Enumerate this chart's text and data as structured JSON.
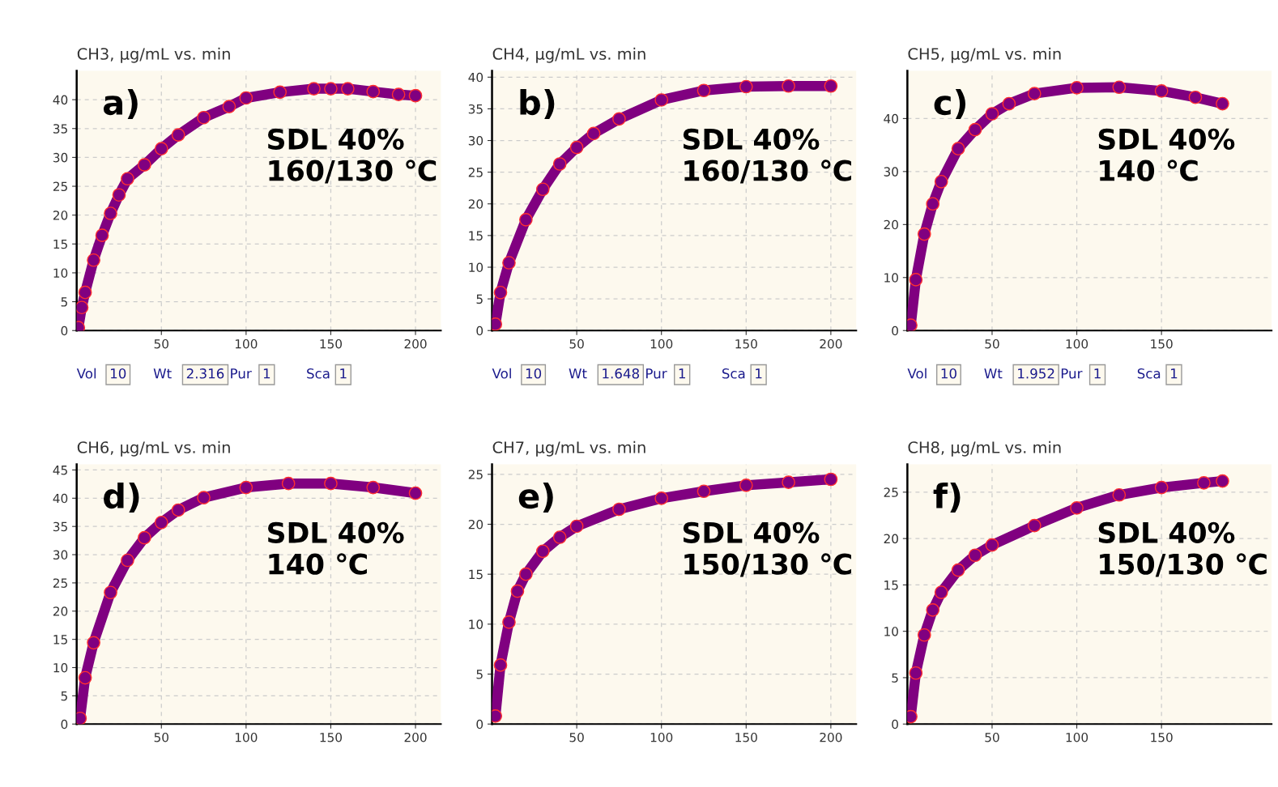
{
  "chart_data": [
    {
      "type": "line",
      "title": "CH3, μg/mL vs. min",
      "marker": "circle",
      "grid": true,
      "xlim": [
        0,
        215
      ],
      "xticks": [
        50,
        100,
        150,
        200
      ],
      "ylim": [
        0,
        45
      ],
      "yticks": [
        0,
        5,
        10,
        15,
        20,
        25,
        30,
        35,
        40
      ],
      "annotations": [
        "a)",
        "SDL 40%\n160/130 ℃",
        "Vol",
        "10",
        "Wt",
        "2.316",
        "Pur",
        "1",
        "Sca",
        "1"
      ],
      "series": [
        {
          "color": "#800080",
          "x": [
            1,
            3,
            5,
            10,
            15,
            20,
            25,
            30,
            40,
            50,
            60,
            75,
            90,
            100,
            120,
            140,
            150,
            160,
            175,
            190,
            200
          ],
          "values": [
            0.5,
            4,
            6.6,
            12.2,
            16.5,
            20.3,
            23.5,
            26.3,
            28.7,
            31.5,
            33.9,
            36.9,
            38.8,
            40.3,
            41.3,
            41.9,
            41.9,
            41.9,
            41.4,
            40.9,
            40.7
          ]
        }
      ]
    },
    {
      "type": "line",
      "title": "CH4, μg/mL vs. min",
      "marker": "circle",
      "grid": true,
      "xlim": [
        0,
        215
      ],
      "xticks": [
        50,
        100,
        150,
        200
      ],
      "ylim": [
        0,
        41
      ],
      "yticks": [
        0,
        5,
        10,
        15,
        20,
        25,
        30,
        35,
        40
      ],
      "annotations": [
        "b)",
        "SDL 40%\n160/130 ℃",
        "Vol",
        "10",
        "Wt",
        "1.648",
        "Pur",
        "1",
        "Sca",
        "1"
      ],
      "series": [
        {
          "color": "#800080",
          "x": [
            2,
            5,
            10,
            20,
            30,
            40,
            50,
            60,
            75,
            100,
            125,
            150,
            175,
            200
          ],
          "values": [
            1,
            6.0,
            10.7,
            17.5,
            22.3,
            26.3,
            28.9,
            31.1,
            33.4,
            36.4,
            37.9,
            38.5,
            38.6,
            38.6
          ]
        }
      ]
    },
    {
      "type": "line",
      "title": "CH5, μg/mL vs. min",
      "marker": "circle",
      "grid": true,
      "xlim": [
        0,
        215
      ],
      "xticks": [
        50,
        100,
        150
      ],
      "ylim": [
        0,
        49
      ],
      "yticks": [
        0,
        10,
        20,
        30,
        40
      ],
      "annotations": [
        "c)",
        "SDL 40%\n140 ℃",
        "Vol",
        "10",
        "Wt",
        "1.952",
        "Pur",
        "1",
        "Sca",
        "1"
      ],
      "series": [
        {
          "color": "#800080",
          "x": [
            2,
            5,
            10,
            15,
            20,
            30,
            40,
            50,
            60,
            75,
            100,
            125,
            150,
            170,
            186
          ],
          "values": [
            1,
            9.6,
            18.2,
            23.9,
            28.1,
            34.3,
            37.9,
            40.9,
            42.8,
            44.7,
            45.8,
            45.9,
            45.2,
            44.0,
            42.8
          ]
        }
      ]
    },
    {
      "type": "line",
      "title": "CH6, μg/mL vs. min",
      "marker": "circle",
      "grid": true,
      "xlim": [
        0,
        215
      ],
      "xticks": [
        50,
        100,
        150,
        200
      ],
      "ylim": [
        0,
        46
      ],
      "yticks": [
        0,
        5,
        10,
        15,
        20,
        25,
        30,
        35,
        40,
        45
      ],
      "annotations": [
        "d)",
        "SDL 40%\n140 ℃"
      ],
      "series": [
        {
          "color": "#800080",
          "x": [
            2,
            5,
            10,
            20,
            30,
            40,
            50,
            60,
            75,
            100,
            125,
            150,
            175,
            200
          ],
          "values": [
            1,
            8.2,
            14.4,
            23.3,
            29.0,
            33.0,
            35.7,
            37.9,
            40.1,
            41.9,
            42.6,
            42.6,
            41.9,
            40.9
          ]
        }
      ]
    },
    {
      "type": "line",
      "title": "CH7, μg/mL vs. min",
      "marker": "circle",
      "grid": true,
      "xlim": [
        0,
        215
      ],
      "xticks": [
        50,
        100,
        150,
        200
      ],
      "ylim": [
        0,
        26
      ],
      "yticks": [
        0,
        5,
        10,
        15,
        20,
        25
      ],
      "annotations": [
        "e)",
        "SDL 40%\n150/130 ℃"
      ],
      "series": [
        {
          "color": "#800080",
          "x": [
            2,
            5,
            10,
            15,
            20,
            30,
            40,
            50,
            75,
            100,
            125,
            150,
            175,
            200
          ],
          "values": [
            0.8,
            5.9,
            10.2,
            13.3,
            15.0,
            17.3,
            18.7,
            19.8,
            21.5,
            22.6,
            23.3,
            23.9,
            24.2,
            24.5
          ]
        }
      ]
    },
    {
      "type": "line",
      "title": "CH8, μg/mL vs. min",
      "marker": "circle",
      "grid": true,
      "xlim": [
        0,
        215
      ],
      "xticks": [
        50,
        100,
        150
      ],
      "ylim": [
        0,
        28
      ],
      "yticks": [
        0,
        5,
        10,
        15,
        20,
        25
      ],
      "annotations": [
        "f)",
        "SDL 40%\n150/130 ℃"
      ],
      "series": [
        {
          "color": "#800080",
          "x": [
            2,
            5,
            10,
            15,
            20,
            30,
            40,
            50,
            75,
            100,
            125,
            150,
            175,
            186
          ],
          "values": [
            0.8,
            5.5,
            9.6,
            12.3,
            14.2,
            16.6,
            18.2,
            19.3,
            21.4,
            23.3,
            24.7,
            25.5,
            26.0,
            26.2
          ]
        }
      ]
    }
  ]
}
